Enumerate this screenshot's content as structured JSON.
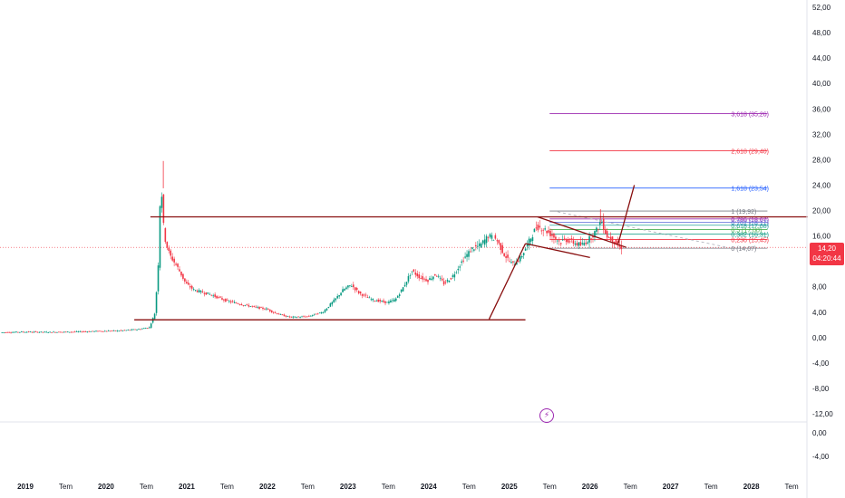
{
  "chart_data": {
    "type": "candlestick",
    "price_axis": {
      "main_ticks": [
        "52,00",
        "48,00",
        "44,00",
        "40,00",
        "36,00",
        "32,00",
        "28,00",
        "24,00",
        "20,00",
        "16,00",
        "12,00",
        "8,00",
        "4,00",
        "0,00",
        "-4,00",
        "-8,00",
        "-12,00"
      ],
      "main_range": [
        -12,
        52
      ],
      "sub_ticks": [
        "0,00",
        "-4,00"
      ]
    },
    "time_axis": {
      "labels": [
        "2019",
        "Tem",
        "2020",
        "Tem",
        "2021",
        "Tem",
        "2022",
        "Tem",
        "2023",
        "Tem",
        "2024",
        "Tem",
        "2025",
        "Tem",
        "2026",
        "Tem",
        "2027",
        "Tem",
        "2028",
        "Tem"
      ],
      "range": [
        2019.0,
        2028.6
      ]
    },
    "last_price": {
      "value": "14,20",
      "countdown": "04:20:44",
      "price": 14.2
    },
    "price_path": [
      [
        2018.7,
        0.8
      ],
      [
        2019.0,
        0.9
      ],
      [
        2019.3,
        0.85
      ],
      [
        2019.6,
        0.9
      ],
      [
        2019.9,
        1.0
      ],
      [
        2020.2,
        1.1
      ],
      [
        2020.4,
        1.3
      ],
      [
        2020.55,
        1.6
      ],
      [
        2020.62,
        4.0
      ],
      [
        2020.66,
        12.0
      ],
      [
        2020.68,
        21.0
      ],
      [
        2020.7,
        23.0
      ],
      [
        2020.72,
        18.0
      ],
      [
        2020.75,
        15.0
      ],
      [
        2020.8,
        13.0
      ],
      [
        2020.9,
        11.0
      ],
      [
        2021.0,
        8.5
      ],
      [
        2021.1,
        7.5
      ],
      [
        2021.3,
        6.8
      ],
      [
        2021.5,
        5.8
      ],
      [
        2021.7,
        5.2
      ],
      [
        2021.9,
        4.7
      ],
      [
        2022.0,
        4.5
      ],
      [
        2022.1,
        3.9
      ],
      [
        2022.2,
        3.5
      ],
      [
        2022.3,
        3.2
      ],
      [
        2022.5,
        3.3
      ],
      [
        2022.7,
        4.0
      ],
      [
        2022.85,
        6.0
      ],
      [
        2022.95,
        7.5
      ],
      [
        2023.05,
        8.3
      ],
      [
        2023.15,
        7.0
      ],
      [
        2023.3,
        6.0
      ],
      [
        2023.5,
        5.5
      ],
      [
        2023.6,
        6.0
      ],
      [
        2023.7,
        8.0
      ],
      [
        2023.8,
        10.5
      ],
      [
        2023.9,
        9.5
      ],
      [
        2024.0,
        9.0
      ],
      [
        2024.1,
        10.0
      ],
      [
        2024.2,
        8.5
      ],
      [
        2024.3,
        9.5
      ],
      [
        2024.45,
        12.5
      ],
      [
        2024.55,
        14.0
      ],
      [
        2024.65,
        14.5
      ],
      [
        2024.75,
        16.0
      ],
      [
        2024.85,
        15.5
      ],
      [
        2024.95,
        13.0
      ],
      [
        2025.05,
        11.5
      ],
      [
        2025.15,
        12.5
      ],
      [
        2025.25,
        15.0
      ],
      [
        2025.35,
        17.5
      ],
      [
        2025.45,
        17.0
      ],
      [
        2025.55,
        16.0
      ],
      [
        2025.65,
        15.0
      ],
      [
        2025.7,
        15.5
      ],
      [
        2025.8,
        15.0
      ],
      [
        2025.9,
        14.5
      ],
      [
        2026.0,
        15.5
      ],
      [
        2026.1,
        17.0
      ],
      [
        2026.15,
        18.5
      ],
      [
        2026.22,
        16.0
      ],
      [
        2026.3,
        15.2
      ],
      [
        2026.38,
        14.2
      ]
    ],
    "drawings": {
      "resistance_line": {
        "x": [
          2020.55,
          2028.7
        ],
        "y": [
          19.0,
          19.0
        ]
      },
      "support_line": {
        "x": [
          2020.35,
          2025.2
        ],
        "y": [
          2.8,
          2.8
        ]
      },
      "pennant_upper": {
        "x": [
          2025.35,
          2026.45
        ],
        "y": [
          19.0,
          14.2
        ]
      },
      "pennant_lower": {
        "x": [
          2025.2,
          2026.0
        ],
        "y": [
          14.8,
          12.6
        ]
      },
      "flagpole": {
        "x": [
          2024.75,
          2025.2
        ],
        "y": [
          2.9,
          14.8
        ]
      },
      "projection": {
        "x": [
          2026.35,
          2026.55
        ],
        "y": [
          14.8,
          24.0
        ]
      },
      "dashed_trend": {
        "x": [
          2025.6,
          2027.7
        ],
        "y": [
          19.8,
          14.2
        ]
      }
    },
    "fibonacci": {
      "x_range": [
        2025.5,
        2028.2
      ],
      "label_x": 2027.75,
      "levels": [
        {
          "label": "3,618 (35,26)",
          "price": 35.26,
          "color": "#9c27b0"
        },
        {
          "label": "2,618 (29,40)",
          "price": 29.4,
          "color": "#f23645"
        },
        {
          "label": "1,618 (23,54)",
          "price": 23.54,
          "color": "#2962ff"
        },
        {
          "label": "1 (19,92)",
          "price": 19.92,
          "color": "#787b86"
        },
        {
          "label": "0,786 (18,67)",
          "price": 18.67,
          "color": "#9c27b0"
        },
        {
          "label": "0,702 (18,17)",
          "price": 18.17,
          "color": "#5b6bd8"
        },
        {
          "label": "0,618 (17,68)",
          "price": 17.68,
          "color": "#26a69a"
        },
        {
          "label": "0,5 (17,00)",
          "price": 17.0,
          "color": "#4caf50"
        },
        {
          "label": "0,382 (16,31)",
          "price": 16.31,
          "color": "#089981"
        },
        {
          "label": "0,236 (15,45)",
          "price": 15.45,
          "color": "#f23645"
        },
        {
          "label": "0 (14,07)",
          "price": 14.07,
          "color": "#787b86"
        }
      ]
    },
    "colors": {
      "up": "#089981",
      "down": "#f23645",
      "drawing": "#880e0e",
      "grid": "#f0f3fa"
    },
    "grid": false
  },
  "icons": {
    "bolt": "lightning-bolt-icon"
  }
}
